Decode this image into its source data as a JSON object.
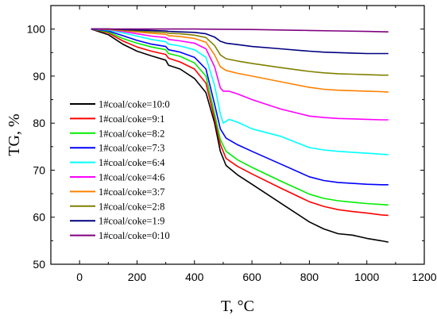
{
  "chart_data": {
    "type": "line",
    "title": "",
    "xlabel": "T, °C",
    "ylabel": "TG, %",
    "xlim": [
      -100,
      1200
    ],
    "ylim": [
      50,
      105
    ],
    "xticks": [
      0,
      200,
      400,
      600,
      800,
      1000,
      1200
    ],
    "yticks": [
      50,
      60,
      70,
      80,
      90,
      100
    ],
    "grid": false,
    "legend_position": "bottom-left",
    "series": [
      {
        "name": "1#coal/coke=10:0",
        "color": "#000000",
        "x": [
          40,
          100,
          150,
          200,
          250,
          300,
          310,
          350,
          400,
          440,
          470,
          490,
          510,
          550,
          600,
          700,
          800,
          850,
          900,
          950,
          1000,
          1050,
          1075
        ],
        "y": [
          100,
          98.8,
          96.8,
          95.3,
          94.3,
          93.4,
          92.3,
          91.5,
          89.5,
          86.5,
          80,
          74,
          71,
          69,
          67,
          63,
          59,
          57.5,
          56.5,
          56.2,
          55.5,
          55,
          54.7
        ]
      },
      {
        "name": "1#coal/coke=9:1",
        "color": "#ff0000",
        "x": [
          40,
          100,
          150,
          200,
          250,
          300,
          310,
          350,
          400,
          440,
          470,
          490,
          510,
          550,
          600,
          700,
          800,
          850,
          900,
          950,
          1000,
          1050,
          1075
        ],
        "y": [
          100,
          99.2,
          97.5,
          96.2,
          95.3,
          94.6,
          93.8,
          93,
          91.5,
          88.5,
          81,
          75.5,
          72.5,
          70.8,
          69.2,
          66.2,
          63.3,
          62.3,
          61.6,
          61.2,
          60.9,
          60.5,
          60.4
        ]
      },
      {
        "name": "1#coal/coke=8:2",
        "color": "#00ee00",
        "x": [
          40,
          100,
          150,
          200,
          250,
          300,
          310,
          350,
          400,
          440,
          470,
          490,
          510,
          550,
          600,
          700,
          800,
          850,
          900,
          950,
          1000,
          1050,
          1075
        ],
        "y": [
          100,
          99.4,
          98,
          97,
          96.2,
          95.6,
          94.8,
          94.2,
          92.8,
          90,
          82,
          76.5,
          74,
          72.2,
          70.6,
          67.7,
          64.9,
          64,
          63.5,
          63.2,
          62.9,
          62.7,
          62.6
        ]
      },
      {
        "name": "1#coal/coke=7:3",
        "color": "#0000ff",
        "x": [
          40,
          100,
          150,
          200,
          250,
          300,
          310,
          350,
          400,
          440,
          470,
          490,
          510,
          550,
          600,
          700,
          800,
          850,
          900,
          950,
          1000,
          1050,
          1075
        ],
        "y": [
          100,
          99.6,
          98.6,
          97.6,
          96.8,
          96.3,
          95.6,
          95.1,
          94,
          91.5,
          84,
          78.8,
          76.8,
          75.4,
          74,
          71.3,
          68.6,
          67.8,
          67.4,
          67.2,
          67,
          66.9,
          66.9
        ]
      },
      {
        "name": "1#coal/coke=6:4",
        "color": "#00ffff",
        "x": [
          40,
          100,
          150,
          200,
          250,
          300,
          310,
          350,
          400,
          440,
          470,
          490,
          500,
          520,
          550,
          600,
          700,
          800,
          850,
          900,
          950,
          1000,
          1050,
          1075
        ],
        "y": [
          100,
          99.8,
          99.2,
          98.5,
          97.8,
          97.3,
          96.8,
          96.4,
          95.6,
          94,
          88,
          82,
          80,
          80.8,
          80.2,
          78.8,
          77.2,
          74.8,
          74.3,
          74,
          73.8,
          73.6,
          73.4,
          73.3
        ]
      },
      {
        "name": "1#coal/coke=4:6",
        "color": "#ff00ff",
        "x": [
          40,
          100,
          150,
          200,
          250,
          300,
          310,
          350,
          400,
          440,
          470,
          490,
          500,
          520,
          550,
          600,
          700,
          800,
          850,
          900,
          950,
          1000,
          1050,
          1075
        ],
        "y": [
          100,
          99.9,
          99.5,
          99,
          98.5,
          98.2,
          97.8,
          97.5,
          97,
          95.8,
          92,
          87.5,
          86.8,
          86.8,
          86.2,
          85,
          83,
          81.5,
          81.2,
          81,
          80.9,
          80.8,
          80.7,
          80.7
        ]
      },
      {
        "name": "1#coal/coke=3:7",
        "color": "#ff8000",
        "x": [
          40,
          100,
          150,
          200,
          250,
          300,
          310,
          350,
          400,
          440,
          470,
          490,
          510,
          550,
          600,
          700,
          800,
          850,
          900,
          950,
          1000,
          1050,
          1075
        ],
        "y": [
          100,
          99.9,
          99.7,
          99.4,
          99.1,
          98.9,
          98.6,
          98.4,
          98,
          97.2,
          94.5,
          92,
          91.2,
          90.6,
          90,
          88.8,
          87.6,
          87.2,
          87,
          86.9,
          86.8,
          86.7,
          86.6
        ]
      },
      {
        "name": "1#coal/coke=2:8",
        "color": "#808000",
        "x": [
          40,
          100,
          150,
          200,
          250,
          300,
          310,
          350,
          400,
          440,
          470,
          490,
          510,
          550,
          600,
          700,
          800,
          850,
          900,
          950,
          1000,
          1050,
          1075
        ],
        "y": [
          100,
          100,
          99.8,
          99.6,
          99.4,
          99.3,
          99.1,
          99,
          98.7,
          98.2,
          96.5,
          94.5,
          93.7,
          93.2,
          92.7,
          91.8,
          91,
          90.7,
          90.5,
          90.4,
          90.3,
          90.2,
          90.2
        ]
      },
      {
        "name": "1#coal/coke=1:9",
        "color": "#000080",
        "x": [
          40,
          100,
          150,
          200,
          250,
          300,
          310,
          350,
          400,
          440,
          470,
          490,
          510,
          550,
          600,
          700,
          800,
          850,
          900,
          950,
          1000,
          1050,
          1075
        ],
        "y": [
          100,
          100,
          99.9,
          99.8,
          99.7,
          99.6,
          99.5,
          99.4,
          99.3,
          99,
          98.3,
          97.4,
          97,
          96.7,
          96.3,
          95.8,
          95.3,
          95.1,
          95,
          94.9,
          94.8,
          94.8,
          94.8
        ]
      },
      {
        "name": "1#coal/coke=0:10",
        "color": "#800080",
        "x": [
          40,
          200,
          400,
          600,
          800,
          900,
          1000,
          1075
        ],
        "y": [
          100,
          100,
          100,
          99.9,
          99.7,
          99.6,
          99.5,
          99.4
        ]
      }
    ]
  }
}
